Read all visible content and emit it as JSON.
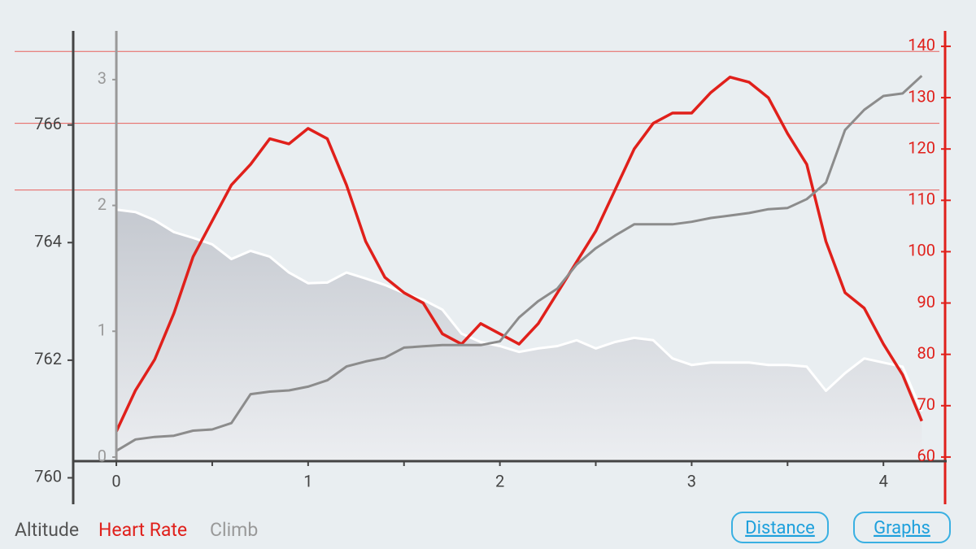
{
  "chart_data": {
    "type": "line",
    "x": [
      0,
      0.1,
      0.2,
      0.3,
      0.4,
      0.5,
      0.6,
      0.7,
      0.8,
      0.9,
      1.0,
      1.1,
      1.2,
      1.3,
      1.4,
      1.5,
      1.6,
      1.7,
      1.8,
      1.9,
      2.0,
      2.1,
      2.2,
      2.3,
      2.4,
      2.5,
      2.6,
      2.7,
      2.8,
      2.9,
      3.0,
      3.1,
      3.2,
      3.3,
      3.4,
      3.5,
      3.6,
      3.7,
      3.8,
      3.9,
      4.0,
      4.1,
      4.2
    ],
    "series": [
      {
        "name": "Altitude",
        "color": "#ffffff",
        "axis": "y",
        "fill": true,
        "values": [
          764.56,
          764.52,
          764.38,
          764.18,
          764.08,
          763.97,
          763.72,
          763.86,
          763.76,
          763.49,
          763.31,
          763.32,
          763.49,
          763.39,
          763.28,
          763.14,
          763.03,
          762.86,
          762.45,
          762.31,
          762.24,
          762.14,
          762.2,
          762.24,
          762.34,
          762.2,
          762.31,
          762.38,
          762.34,
          762.03,
          761.92,
          761.96,
          761.96,
          761.96,
          761.92,
          761.92,
          761.89,
          761.48,
          761.78,
          762.03,
          761.96,
          761.89,
          761.13
        ]
      },
      {
        "name": "Heart Rate",
        "color": "#e0201b",
        "axis": "y2",
        "values": [
          65,
          73,
          79,
          88,
          99,
          106,
          113,
          117,
          122,
          121,
          124,
          122,
          113,
          102,
          95,
          92,
          90,
          84,
          82,
          86,
          84,
          82,
          86,
          92,
          98,
          104,
          112,
          120,
          125,
          127,
          127,
          131,
          134,
          133,
          130,
          123,
          117,
          102,
          92,
          89,
          82,
          76,
          67
        ]
      },
      {
        "name": "Climb",
        "color": "#8c8c8c",
        "axis": "y3",
        "values": [
          0.05,
          0.14,
          0.16,
          0.17,
          0.21,
          0.22,
          0.27,
          0.5,
          0.52,
          0.53,
          0.56,
          0.61,
          0.72,
          0.76,
          0.79,
          0.87,
          0.88,
          0.89,
          0.89,
          0.89,
          0.92,
          1.11,
          1.24,
          1.34,
          1.53,
          1.66,
          1.76,
          1.85,
          1.85,
          1.85,
          1.87,
          1.9,
          1.92,
          1.94,
          1.97,
          1.98,
          2.05,
          2.18,
          2.6,
          2.76,
          2.87,
          2.89,
          3.03
        ]
      }
    ],
    "xlim": [
      -0.225,
      4.33
    ],
    "xticks": [
      0,
      1,
      2,
      3,
      4
    ],
    "xminor_ticks": [
      0.5,
      1.5,
      2.5,
      3.5
    ],
    "ylim": [
      759.55,
      767.6
    ],
    "yticks": [
      760,
      762,
      764,
      766
    ],
    "y2lim": [
      50.8,
      143
    ],
    "y2ticks": [
      60,
      70,
      80,
      90,
      100,
      110,
      120,
      130,
      140
    ],
    "y3lim": [
      -0.375,
      3.387
    ],
    "y3ticks": [
      0,
      1,
      2,
      3
    ],
    "y2_reference_lines": [
      139,
      125,
      112
    ],
    "reference_color": "#e8605c"
  },
  "buttons": [
    "Distance",
    "Graphs"
  ]
}
